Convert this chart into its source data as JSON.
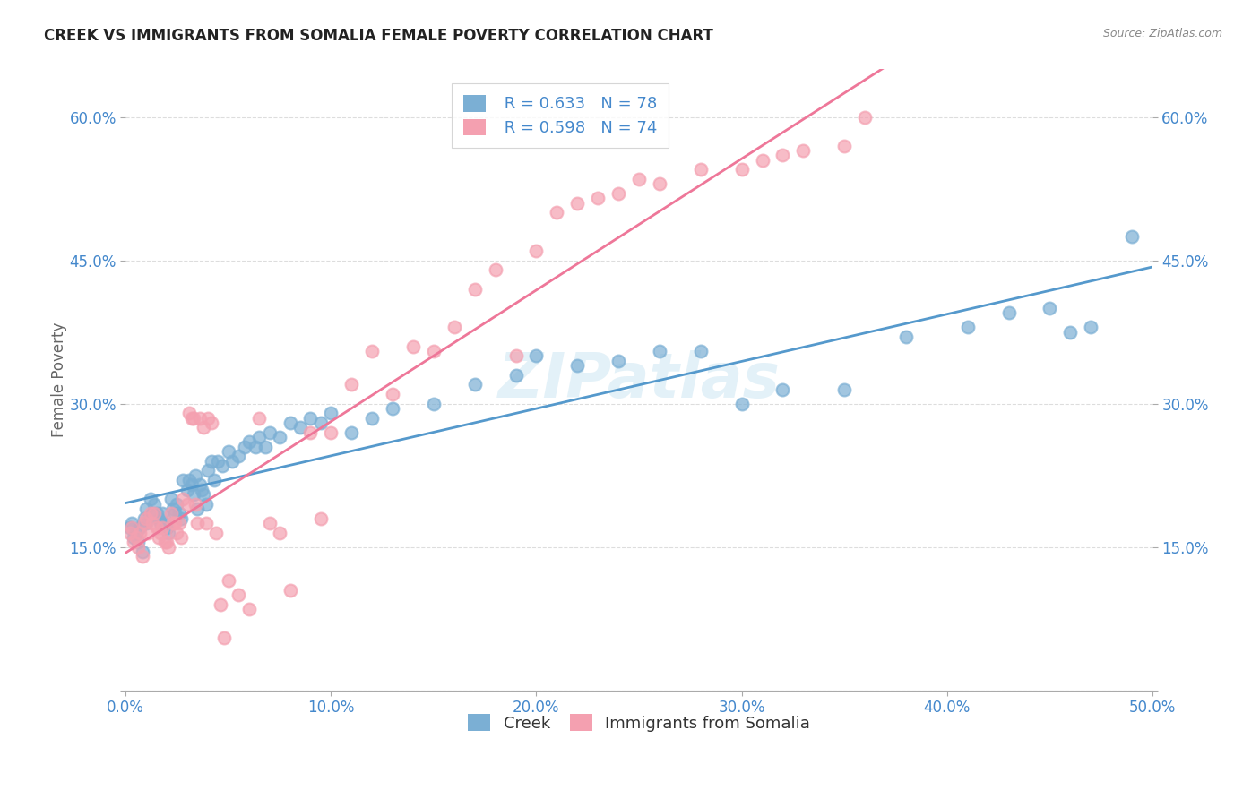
{
  "title": "CREEK VS IMMIGRANTS FROM SOMALIA FEMALE POVERTY CORRELATION CHART",
  "source": "Source: ZipAtlas.com",
  "ylabel": "Female Poverty",
  "xlim": [
    0.0,
    0.5
  ],
  "ylim": [
    0.0,
    0.65
  ],
  "xticks": [
    0.0,
    0.1,
    0.2,
    0.3,
    0.4,
    0.5
  ],
  "xticklabels": [
    "0.0%",
    "10.0%",
    "20.0%",
    "30.0%",
    "40.0%",
    "50.0%"
  ],
  "yticks": [
    0.0,
    0.15,
    0.3,
    0.45,
    0.6
  ],
  "yticklabels": [
    "",
    "15.0%",
    "30.0%",
    "45.0%",
    "60.0%"
  ],
  "creek_color": "#7BAFD4",
  "somalia_color": "#F4A0B0",
  "creek_line_color": "#5599CC",
  "somalia_line_color": "#EE7799",
  "creek_R": 0.633,
  "creek_N": 78,
  "somalia_R": 0.598,
  "somalia_N": 74,
  "watermark": "ZIPatlas",
  "legend_labels": [
    "Creek",
    "Immigrants from Somalia"
  ],
  "creek_x": [
    0.002,
    0.003,
    0.004,
    0.005,
    0.006,
    0.007,
    0.008,
    0.009,
    0.01,
    0.01,
    0.012,
    0.013,
    0.014,
    0.015,
    0.016,
    0.017,
    0.018,
    0.019,
    0.02,
    0.021,
    0.022,
    0.023,
    0.024,
    0.025,
    0.026,
    0.027,
    0.028,
    0.03,
    0.031,
    0.032,
    0.033,
    0.034,
    0.035,
    0.036,
    0.037,
    0.038,
    0.039,
    0.04,
    0.042,
    0.043,
    0.045,
    0.047,
    0.05,
    0.052,
    0.055,
    0.058,
    0.06,
    0.063,
    0.065,
    0.068,
    0.07,
    0.075,
    0.08,
    0.085,
    0.09,
    0.095,
    0.1,
    0.11,
    0.12,
    0.13,
    0.15,
    0.17,
    0.19,
    0.2,
    0.22,
    0.24,
    0.26,
    0.28,
    0.3,
    0.32,
    0.35,
    0.38,
    0.41,
    0.43,
    0.45,
    0.46,
    0.47,
    0.49
  ],
  "creek_y": [
    0.17,
    0.175,
    0.16,
    0.165,
    0.155,
    0.17,
    0.145,
    0.18,
    0.19,
    0.175,
    0.2,
    0.185,
    0.195,
    0.185,
    0.18,
    0.175,
    0.185,
    0.175,
    0.17,
    0.165,
    0.2,
    0.19,
    0.185,
    0.195,
    0.185,
    0.18,
    0.22,
    0.21,
    0.22,
    0.215,
    0.205,
    0.225,
    0.19,
    0.215,
    0.21,
    0.205,
    0.195,
    0.23,
    0.24,
    0.22,
    0.24,
    0.235,
    0.25,
    0.24,
    0.245,
    0.255,
    0.26,
    0.255,
    0.265,
    0.255,
    0.27,
    0.265,
    0.28,
    0.275,
    0.285,
    0.28,
    0.29,
    0.27,
    0.285,
    0.295,
    0.3,
    0.32,
    0.33,
    0.35,
    0.34,
    0.345,
    0.355,
    0.355,
    0.3,
    0.315,
    0.315,
    0.37,
    0.38,
    0.395,
    0.4,
    0.375,
    0.38,
    0.475
  ],
  "somalia_x": [
    0.002,
    0.003,
    0.004,
    0.005,
    0.006,
    0.007,
    0.008,
    0.009,
    0.01,
    0.011,
    0.012,
    0.013,
    0.014,
    0.015,
    0.016,
    0.017,
    0.018,
    0.019,
    0.02,
    0.021,
    0.022,
    0.023,
    0.024,
    0.025,
    0.026,
    0.027,
    0.028,
    0.03,
    0.031,
    0.032,
    0.033,
    0.034,
    0.035,
    0.036,
    0.038,
    0.039,
    0.04,
    0.042,
    0.044,
    0.046,
    0.048,
    0.05,
    0.055,
    0.06,
    0.065,
    0.07,
    0.075,
    0.08,
    0.09,
    0.095,
    0.1,
    0.11,
    0.12,
    0.13,
    0.14,
    0.15,
    0.16,
    0.17,
    0.18,
    0.19,
    0.2,
    0.21,
    0.22,
    0.23,
    0.24,
    0.25,
    0.26,
    0.28,
    0.3,
    0.31,
    0.32,
    0.33,
    0.35,
    0.36
  ],
  "somalia_y": [
    0.165,
    0.17,
    0.155,
    0.16,
    0.15,
    0.165,
    0.14,
    0.175,
    0.18,
    0.165,
    0.185,
    0.175,
    0.185,
    0.17,
    0.16,
    0.165,
    0.17,
    0.155,
    0.155,
    0.15,
    0.185,
    0.175,
    0.175,
    0.165,
    0.175,
    0.16,
    0.2,
    0.195,
    0.29,
    0.285,
    0.285,
    0.195,
    0.175,
    0.285,
    0.275,
    0.175,
    0.285,
    0.28,
    0.165,
    0.09,
    0.055,
    0.115,
    0.1,
    0.085,
    0.285,
    0.175,
    0.165,
    0.105,
    0.27,
    0.18,
    0.27,
    0.32,
    0.355,
    0.31,
    0.36,
    0.355,
    0.38,
    0.42,
    0.44,
    0.35,
    0.46,
    0.5,
    0.51,
    0.515,
    0.52,
    0.535,
    0.53,
    0.545,
    0.545,
    0.555,
    0.56,
    0.565,
    0.57,
    0.6
  ]
}
